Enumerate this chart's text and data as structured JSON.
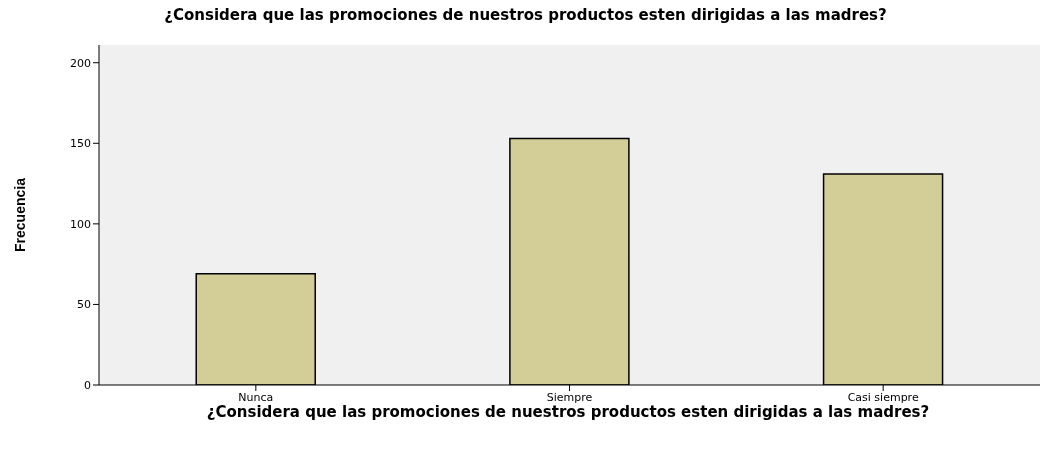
{
  "chart_data": {
    "type": "bar",
    "title": "¿Considera que las promociones de nuestros productos esten dirigidas a las madres?",
    "xlabel": "¿Considera que las promociones de nuestros productos esten dirigidas a las madres?",
    "ylabel": "Frecuencia",
    "categories": [
      "Nunca",
      "Siempre",
      "Casi siempre"
    ],
    "values": [
      69,
      153,
      131
    ],
    "color": "#d3ce97",
    "ylim": [
      0,
      211
    ],
    "yticks": [
      0,
      50,
      100,
      150,
      200
    ]
  }
}
